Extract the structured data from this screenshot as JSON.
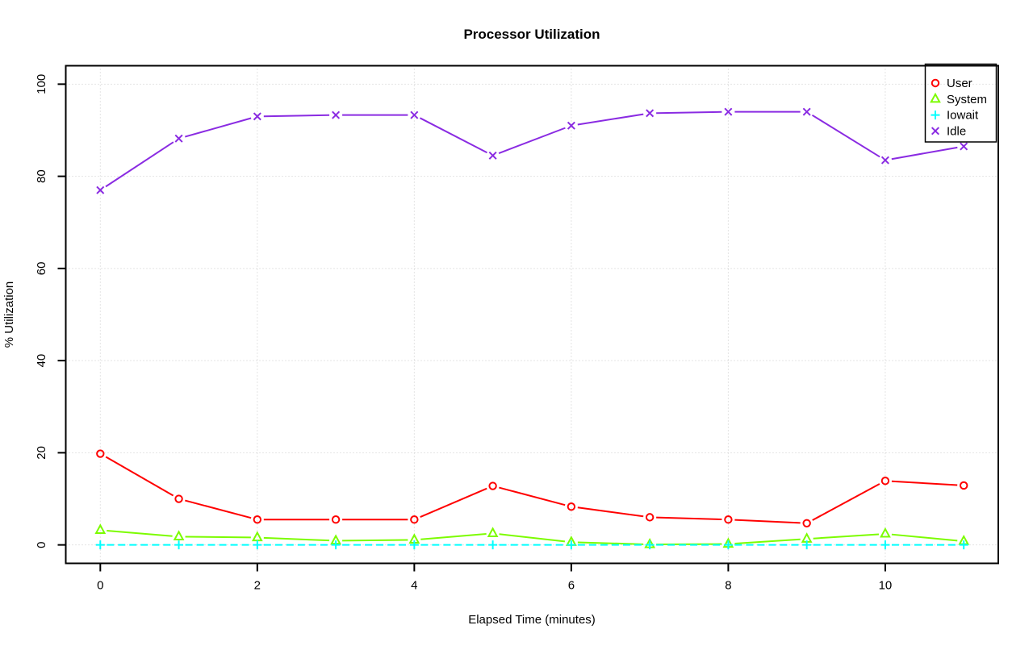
{
  "colors": {
    "background": "#ffffff",
    "axis": "#000000",
    "grid": "#c9c9c9",
    "user": "#ff0000",
    "system": "#7cfc00",
    "iowait": "#00ffff",
    "idle": "#8a2be2"
  },
  "chart_data": {
    "type": "line",
    "title": "Processor Utilization",
    "xlabel": "Elapsed Time (minutes)",
    "ylabel": "% Utilization",
    "x": [
      0,
      1,
      2,
      3,
      4,
      5,
      6,
      7,
      8,
      9,
      10,
      11
    ],
    "xlim": [
      0,
      11
    ],
    "ylim": [
      0,
      100
    ],
    "x_ticks": [
      0,
      2,
      4,
      6,
      8,
      10
    ],
    "y_ticks": [
      0,
      20,
      40,
      60,
      80,
      100
    ],
    "grid": "dotted",
    "legend_position": "top-right",
    "legend_entries": [
      "User",
      "System",
      "Iowait",
      "Idle"
    ],
    "series": [
      {
        "name": "User",
        "color": "#ff0000",
        "marker": "circle",
        "line": "solid",
        "values": [
          19.8,
          10.0,
          5.5,
          5.5,
          5.5,
          12.8,
          8.3,
          6.0,
          5.5,
          4.7,
          13.9,
          12.9
        ]
      },
      {
        "name": "System",
        "color": "#7cfc00",
        "marker": "triangle",
        "line": "solid",
        "values": [
          3.2,
          1.8,
          1.6,
          0.9,
          1.1,
          2.5,
          0.6,
          0.1,
          0.2,
          1.3,
          2.4,
          0.8
        ]
      },
      {
        "name": "Iowait",
        "color": "#00ffff",
        "marker": "plus",
        "line": "dashed",
        "values": [
          0,
          0,
          0,
          0,
          0,
          0,
          0,
          0,
          0,
          0,
          0,
          0
        ]
      },
      {
        "name": "Idle",
        "color": "#8a2be2",
        "marker": "x",
        "line": "solid",
        "values": [
          77.0,
          88.2,
          93.0,
          93.3,
          93.3,
          84.5,
          91.0,
          93.7,
          94.0,
          94.0,
          83.5,
          86.5
        ]
      }
    ]
  }
}
